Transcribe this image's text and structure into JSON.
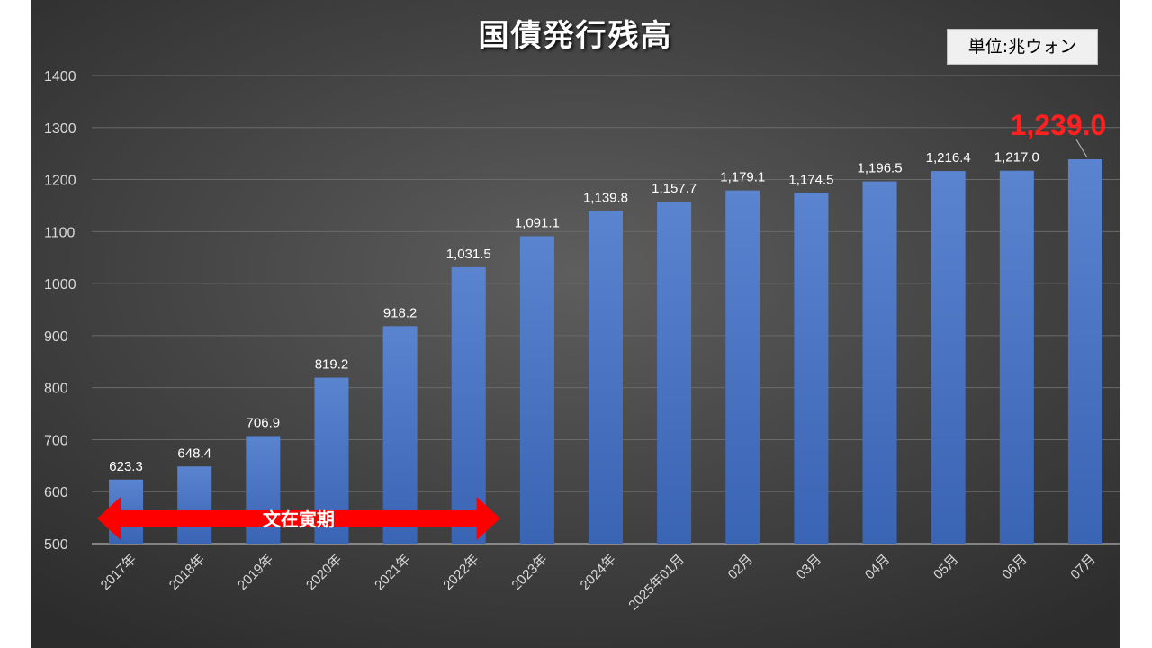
{
  "chart_data": {
    "type": "bar",
    "title": "国債発行残高",
    "unit_label": "単位:兆ウォン",
    "categories": [
      "2017年",
      "2018年",
      "2019年",
      "2020年",
      "2021年",
      "2022年",
      "2023年",
      "2024年",
      "2025年01月",
      "02月",
      "03月",
      "04月",
      "05月",
      "06月",
      "07月"
    ],
    "values": [
      623.3,
      648.4,
      706.9,
      819.2,
      918.2,
      1031.5,
      1091.1,
      1139.8,
      1157.7,
      1179.1,
      1174.5,
      1196.5,
      1216.4,
      1217.0,
      1239.0
    ],
    "data_labels": [
      "623.3",
      "648.4",
      "706.9",
      "819.2",
      "918.2",
      "1,031.5",
      "1,091.1",
      "1,139.8",
      "1,157.7",
      "1,179.1",
      "1,174.5",
      "1,196.5",
      "1,216.4",
      "1,217.0",
      "1,239.0"
    ],
    "highlight_index": 14,
    "ylim": [
      500,
      1400
    ],
    "yticks": [
      500,
      600,
      700,
      800,
      900,
      1000,
      1100,
      1200,
      1300,
      1400
    ],
    "grid": true,
    "annotation": {
      "text": "文在寅期",
      "from_index": 0,
      "to_index": 5,
      "color": "#ff0000"
    },
    "colors": {
      "bar_top": "#5a84cf",
      "bar_bottom": "#3a64b4",
      "highlight_label": "#ff2020",
      "label": "#ffffff"
    }
  }
}
